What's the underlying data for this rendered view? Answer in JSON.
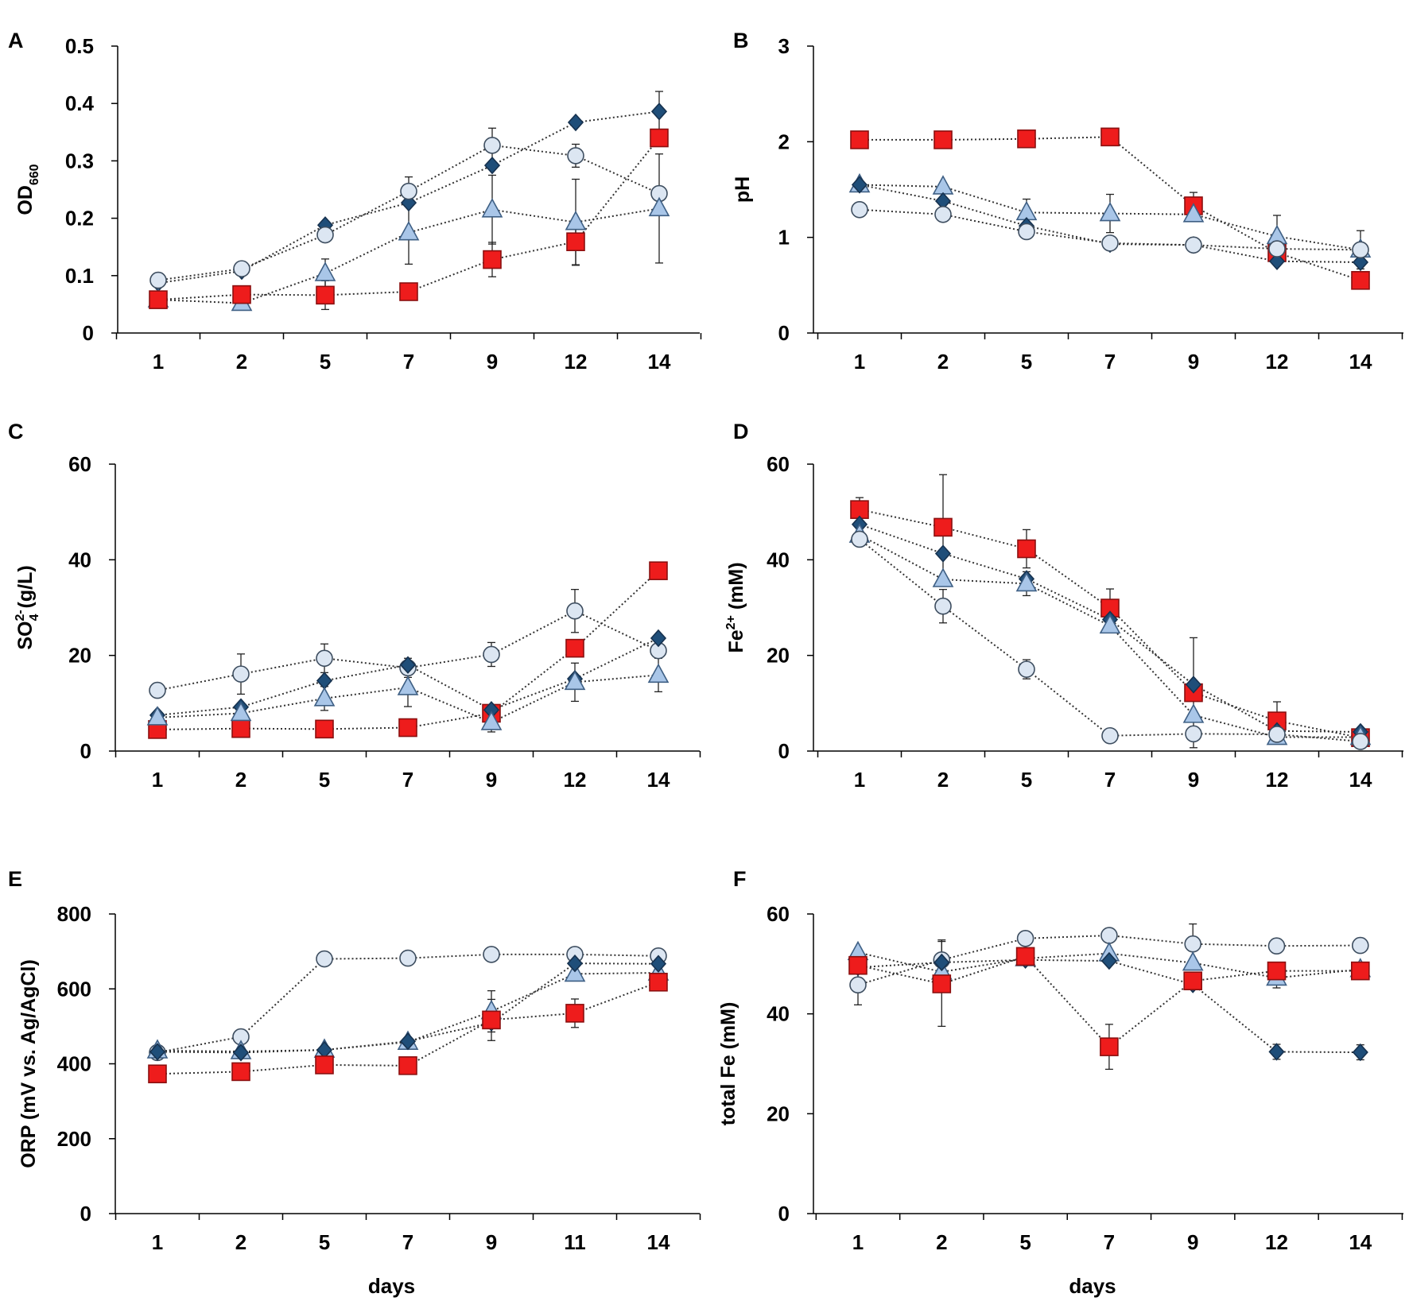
{
  "colors": {
    "diamond_fill": "#1f4e79",
    "diamond_stroke": "#17324f",
    "triangle_fill": "#a9c6e8",
    "triangle_stroke": "#3e5f84",
    "circle_fill": "#dce6f2",
    "circle_stroke": "#3e4e60",
    "square_fill": "#ee1c1c",
    "square_stroke": "#8b1010",
    "line": "#333333",
    "axis": "#000000"
  },
  "chart_data": [
    {
      "id": "A",
      "type": "line",
      "panel_label": "A",
      "ylabel_main": "OD",
      "ylabel_sub": "660",
      "ylabel_sup": "",
      "ylabel_rest": "",
      "xlabel": "",
      "categories": [
        "1",
        "2",
        "5",
        "7",
        "9",
        "12",
        "14"
      ],
      "ylim": [
        0,
        0.5
      ],
      "yticks": [
        "0",
        "0.1",
        "0.2",
        "0.3",
        "0.4",
        "0.5"
      ],
      "ytick_values": [
        0,
        0.1,
        0.2,
        0.3,
        0.4,
        0.5
      ],
      "series": [
        {
          "name": "diamond",
          "marker": "diamond",
          "values": [
            0.087,
            0.108,
            0.188,
            0.227,
            0.292,
            0.367,
            0.386
          ],
          "errors": [
            0,
            0,
            0,
            0,
            0,
            0,
            0.035
          ]
        },
        {
          "name": "circle",
          "marker": "circle",
          "values": [
            0.092,
            0.112,
            0.171,
            0.247,
            0.327,
            0.309,
            0.243
          ],
          "errors": [
            0,
            0,
            0,
            0.025,
            0.03,
            0.02,
            0
          ]
        },
        {
          "name": "triangle",
          "marker": "triangle",
          "values": [
            0.058,
            0.052,
            0.104,
            0.175,
            0.215,
            0.193,
            0.217
          ],
          "errors": [
            0,
            0,
            0.025,
            0.055,
            0.06,
            0.075,
            0.095
          ]
        },
        {
          "name": "square",
          "marker": "square",
          "values": [
            0.058,
            0.067,
            0.066,
            0.072,
            0.128,
            0.159,
            0.34
          ],
          "errors": [
            0,
            0,
            0.025,
            0,
            0.03,
            0.04,
            0
          ]
        }
      ]
    },
    {
      "id": "B",
      "type": "line",
      "panel_label": "B",
      "ylabel_main": "pH",
      "ylabel_sub": "",
      "ylabel_sup": "",
      "ylabel_rest": "",
      "xlabel": "",
      "categories": [
        "1",
        "2",
        "5",
        "7",
        "9",
        "12",
        "14"
      ],
      "ylim": [
        0,
        3
      ],
      "yticks": [
        "0",
        "1",
        "2",
        "3"
      ],
      "ytick_values": [
        0,
        1,
        2,
        3
      ],
      "series": [
        {
          "name": "square",
          "marker": "square",
          "values": [
            2.02,
            2.02,
            2.03,
            2.05,
            1.33,
            0.84,
            0.55
          ],
          "errors": [
            0,
            0,
            0,
            0,
            0.14,
            0,
            0
          ]
        },
        {
          "name": "triangle",
          "marker": "triangle",
          "values": [
            1.55,
            1.53,
            1.26,
            1.25,
            1.24,
            1.01,
            0.87
          ],
          "errors": [
            0,
            0,
            0.14,
            0.2,
            0,
            0.22,
            0.2
          ]
        },
        {
          "name": "diamond",
          "marker": "diamond",
          "values": [
            1.55,
            1.38,
            1.12,
            0.93,
            0.92,
            0.75,
            0.74
          ],
          "errors": [
            0,
            0,
            0,
            0,
            0,
            0,
            0
          ]
        },
        {
          "name": "circle",
          "marker": "circle",
          "values": [
            1.29,
            1.24,
            1.06,
            0.94,
            0.92,
            0.88,
            0.87
          ],
          "errors": [
            0,
            0,
            0,
            0,
            0,
            0,
            0
          ]
        }
      ]
    },
    {
      "id": "C",
      "type": "line",
      "panel_label": "C",
      "ylabel_main": "SO",
      "ylabel_sub": "4",
      "ylabel_sup": "2-",
      "ylabel_rest": " (g/L)",
      "xlabel": "",
      "categories": [
        "1",
        "2",
        "5",
        "7",
        "9",
        "12",
        "14"
      ],
      "ylim": [
        0,
        60
      ],
      "yticks": [
        "0",
        "20",
        "40",
        "60"
      ],
      "ytick_values": [
        0,
        20,
        40,
        60
      ],
      "series": [
        {
          "name": "circle",
          "marker": "circle",
          "values": [
            12.7,
            16.1,
            19.4,
            17.4,
            20.2,
            29.3,
            21.0
          ],
          "errors": [
            0,
            4.2,
            3.0,
            2.0,
            2.5,
            4.5,
            0
          ]
        },
        {
          "name": "square",
          "marker": "square",
          "values": [
            4.5,
            4.7,
            4.6,
            4.9,
            7.9,
            21.5,
            37.7
          ],
          "errors": [
            0,
            0,
            0,
            0,
            0,
            0,
            0
          ]
        },
        {
          "name": "diamond",
          "marker": "diamond",
          "values": [
            7.5,
            9.2,
            14.7,
            18.0,
            8.6,
            15.1,
            23.6
          ],
          "errors": [
            0,
            0,
            0,
            0,
            0,
            0,
            0
          ]
        },
        {
          "name": "triangle",
          "marker": "triangle",
          "values": [
            7.0,
            7.9,
            11.0,
            13.3,
            6.0,
            14.4,
            15.9
          ],
          "errors": [
            0,
            0,
            2.5,
            4.0,
            2.0,
            4.0,
            3.5
          ]
        }
      ]
    },
    {
      "id": "D",
      "type": "line",
      "panel_label": "D",
      "ylabel_main": "Fe",
      "ylabel_sub": "",
      "ylabel_sup": "2+",
      "ylabel_rest": " (mM)",
      "xlabel": "",
      "categories": [
        "1",
        "2",
        "5",
        "7",
        "9",
        "12",
        "14"
      ],
      "ylim": [
        0,
        60
      ],
      "yticks": [
        "0",
        "20",
        "40",
        "60"
      ],
      "ytick_values": [
        0,
        20,
        40,
        60
      ],
      "series": [
        {
          "name": "square",
          "marker": "square",
          "values": [
            50.5,
            46.8,
            42.3,
            29.9,
            12.2,
            6.3,
            2.8
          ],
          "errors": [
            2.5,
            11.0,
            4.0,
            4.0,
            11.5,
            4.0,
            0
          ]
        },
        {
          "name": "diamond",
          "marker": "diamond",
          "values": [
            47.4,
            41.3,
            36.0,
            27.5,
            13.9,
            4.2,
            4.0
          ],
          "errors": [
            0,
            0,
            0,
            0,
            0,
            0,
            0
          ]
        },
        {
          "name": "triangle",
          "marker": "triangle",
          "values": [
            45.2,
            35.9,
            35.0,
            26.2,
            7.5,
            2.9,
            2.9
          ],
          "errors": [
            0,
            0,
            2.5,
            0,
            0,
            0,
            0
          ]
        },
        {
          "name": "circle",
          "marker": "circle",
          "values": [
            44.3,
            30.3,
            17.1,
            3.2,
            3.6,
            3.5,
            2.0
          ],
          "errors": [
            0,
            3.5,
            2.0,
            0,
            0,
            0,
            0
          ]
        }
      ]
    },
    {
      "id": "E",
      "type": "line",
      "panel_label": "E",
      "ylabel_main": "ORP (mV vs. Ag/AgCl)",
      "ylabel_sub": "",
      "ylabel_sup": "",
      "ylabel_rest": "",
      "xlabel": "days",
      "categories": [
        "1",
        "2",
        "5",
        "7",
        "9",
        "11",
        "14"
      ],
      "ylim": [
        0,
        800
      ],
      "yticks": [
        "0",
        "200",
        "400",
        "600",
        "800"
      ],
      "ytick_values": [
        0,
        200,
        400,
        600,
        800
      ],
      "series": [
        {
          "name": "circle",
          "marker": "circle",
          "values": [
            430,
            472,
            680,
            682,
            692,
            692,
            688
          ],
          "errors": [
            0,
            0,
            0,
            0,
            0,
            0,
            0
          ]
        },
        {
          "name": "triangle",
          "marker": "triangle",
          "values": [
            435,
            433,
            437,
            458,
            540,
            640,
            643
          ],
          "errors": [
            0,
            0,
            0,
            0,
            55,
            0,
            0
          ]
        },
        {
          "name": "diamond",
          "marker": "diamond",
          "values": [
            432,
            430,
            437,
            460,
            510,
            668,
            667
          ],
          "errors": [
            0,
            0,
            0,
            0,
            0,
            0,
            0
          ]
        },
        {
          "name": "square",
          "marker": "square",
          "values": [
            373,
            379,
            397,
            395,
            517,
            535,
            618
          ],
          "errors": [
            0,
            0,
            0,
            0,
            55,
            38,
            0
          ]
        }
      ]
    },
    {
      "id": "F",
      "type": "line",
      "panel_label": "F",
      "ylabel_main": "total Fe (mM)",
      "ylabel_sub": "",
      "ylabel_sup": "",
      "ylabel_rest": "",
      "xlabel": "days",
      "categories": [
        "1",
        "2",
        "5",
        "7",
        "9",
        "12",
        "14"
      ],
      "ylim": [
        0,
        60
      ],
      "yticks": [
        "0",
        "20",
        "40",
        "60"
      ],
      "ytick_values": [
        0,
        20,
        40,
        60
      ],
      "series": [
        {
          "name": "circle",
          "marker": "circle",
          "values": [
            45.8,
            50.8,
            55.1,
            55.7,
            54.0,
            53.6,
            53.7
          ],
          "errors": [
            4.0,
            0,
            0,
            0,
            4.0,
            0,
            0
          ]
        },
        {
          "name": "triangle",
          "marker": "triangle",
          "values": [
            52.3,
            48.4,
            51.1,
            52.1,
            50.2,
            47.2,
            48.9
          ],
          "errors": [
            0,
            0,
            0,
            0,
            0,
            2.0,
            0
          ]
        },
        {
          "name": "diamond",
          "marker": "diamond",
          "values": [
            49.3,
            50.3,
            50.8,
            50.6,
            45.9,
            32.4,
            32.3
          ],
          "errors": [
            0,
            4.5,
            0,
            0,
            0,
            1.5,
            1.5
          ]
        },
        {
          "name": "square",
          "marker": "square",
          "values": [
            49.7,
            46.0,
            51.5,
            33.4,
            46.6,
            48.6,
            48.6
          ],
          "errors": [
            0,
            8.5,
            0,
            4.5,
            0,
            0,
            0
          ]
        }
      ]
    }
  ]
}
